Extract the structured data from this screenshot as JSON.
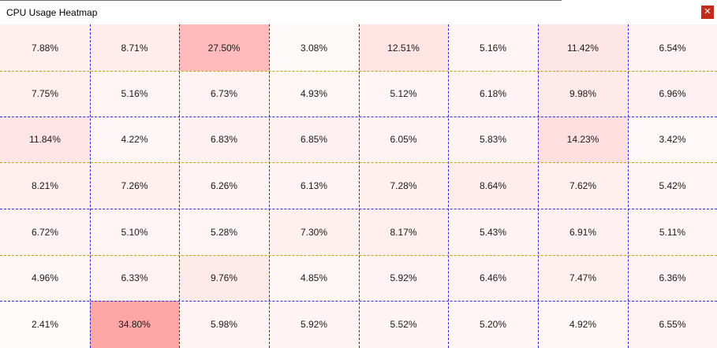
{
  "window": {
    "title": "CPU Usage Heatmap",
    "close_icon": "close-icon"
  },
  "heatmap": {
    "base_color": "#ffffff",
    "hot_color": "#ffa6a6",
    "max_value": 34.8,
    "rows": [
      [
        "7.88%",
        "8.71%",
        "27.50%",
        "3.08%",
        "12.51%",
        "5.16%",
        "11.42%",
        "6.54%"
      ],
      [
        "7.75%",
        "5.16%",
        "6.73%",
        "4.93%",
        "5.12%",
        "6.18%",
        "9.98%",
        "6.96%"
      ],
      [
        "11.84%",
        "4.22%",
        "6.83%",
        "6.85%",
        "6.05%",
        "5.83%",
        "14.23%",
        "3.42%"
      ],
      [
        "8.21%",
        "7.26%",
        "6.26%",
        "6.13%",
        "7.28%",
        "8.64%",
        "7.62%",
        "5.42%"
      ],
      [
        "6.72%",
        "5.10%",
        "5.28%",
        "7.30%",
        "8.17%",
        "5.43%",
        "6.91%",
        "5.11%"
      ],
      [
        "4.96%",
        "6.33%",
        "9.76%",
        "4.85%",
        "5.92%",
        "6.46%",
        "7.47%",
        "6.36%"
      ],
      [
        "2.41%",
        "34.80%",
        "5.98%",
        "5.92%",
        "5.52%",
        "5.20%",
        "4.92%",
        "6.55%"
      ]
    ]
  }
}
